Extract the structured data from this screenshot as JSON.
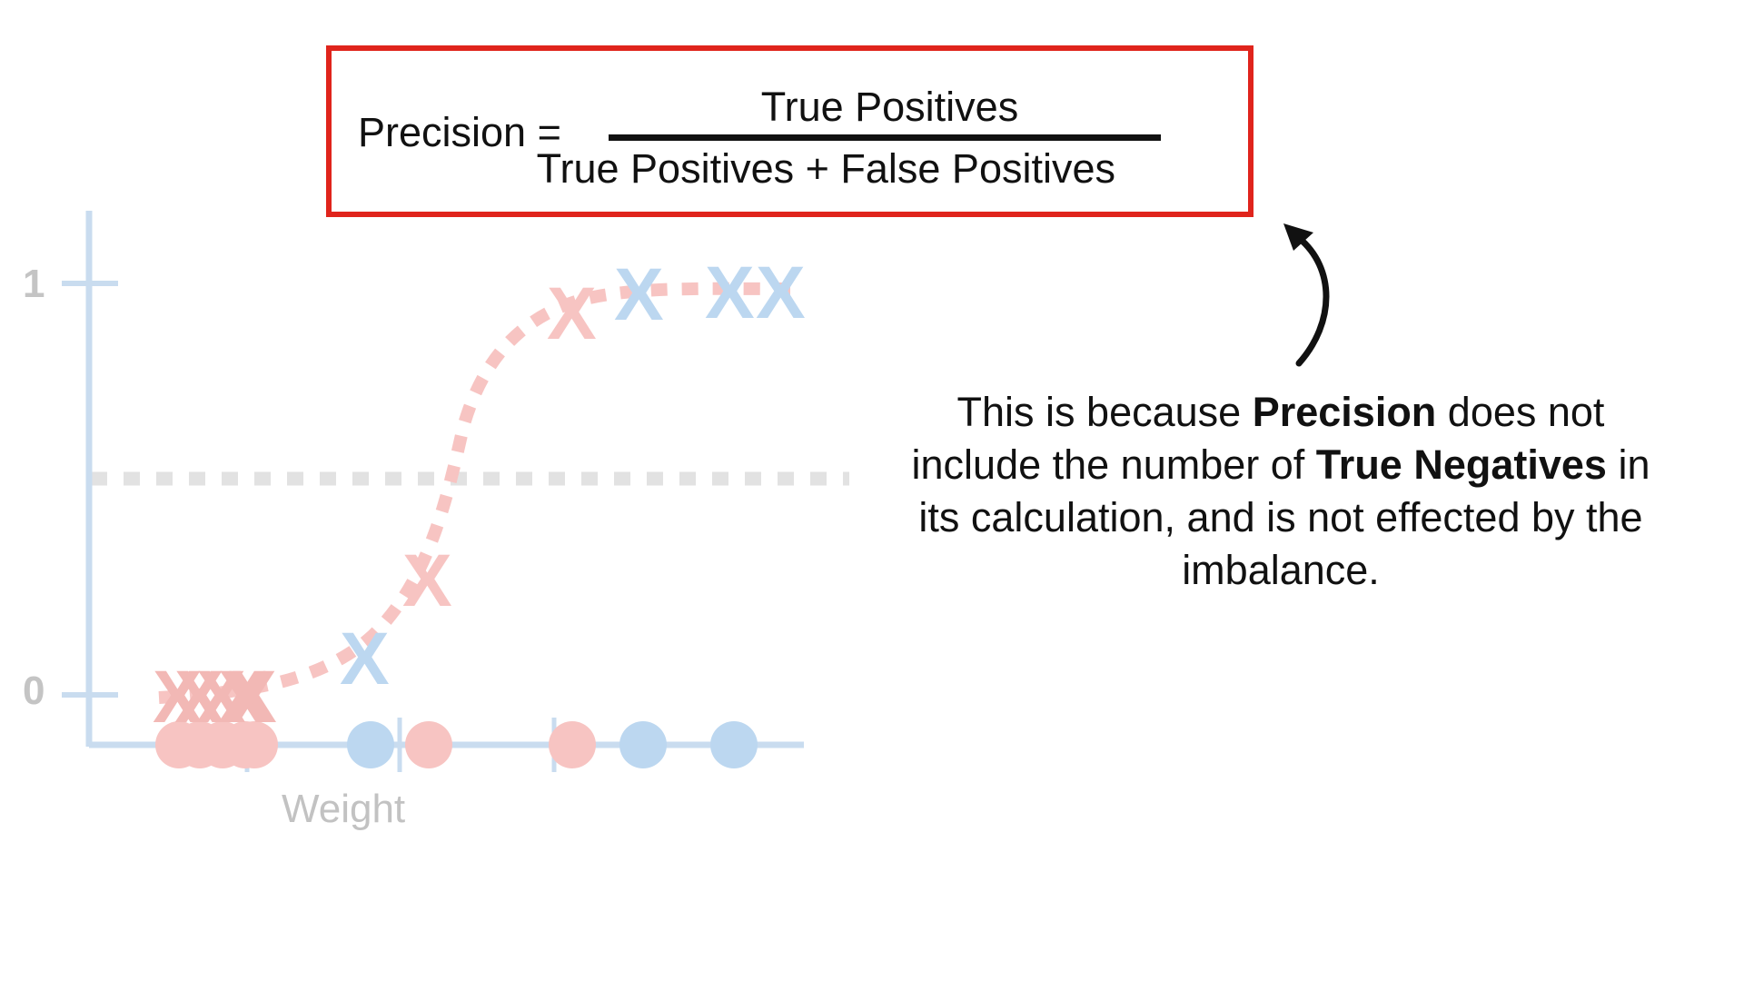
{
  "formula": {
    "lhs": "Precision =",
    "numerator": "True Positives",
    "denominator": "True Positives + False Positives"
  },
  "callout": {
    "t1": "This is because ",
    "b1": "Precision",
    "t2": " does not include the number of ",
    "b2": "True Negatives",
    "t3": " in its calculation, and is not effected by the imbalance."
  },
  "colors": {
    "box_border": "#e0241c",
    "positive_class": "#f7c4c2",
    "negative_class": "#bcd7f0",
    "axis": "#c9dcef",
    "threshold": "#e2e2e2",
    "curve": "#f7c4c2"
  },
  "chart_data": {
    "type": "scatter",
    "xlabel": "Weight",
    "ylabel": "",
    "ylim": [
      0,
      1
    ],
    "yticks": [
      "0",
      "1"
    ],
    "threshold": 0.5,
    "series": [
      {
        "class": "pink",
        "marker": "X",
        "points": [
          [
            0.4,
            0
          ],
          [
            0.5,
            0
          ],
          [
            0.6,
            0
          ],
          [
            0.7,
            0
          ],
          [
            0.8,
            0
          ],
          [
            3.7,
            0.27
          ],
          [
            5.2,
            1
          ]
        ]
      },
      {
        "class": "blue",
        "marker": "X",
        "points": [
          [
            3.0,
            0.08
          ],
          [
            5.8,
            1
          ],
          [
            6.6,
            1
          ],
          [
            7.0,
            1
          ]
        ]
      }
    ],
    "axis_points": [
      {
        "class": "pink",
        "x": [
          0.4,
          0.6,
          0.8,
          1.0,
          1.2,
          3.7,
          5.0
        ]
      },
      {
        "class": "blue",
        "x": [
          3.2,
          5.8,
          6.6
        ]
      }
    ]
  }
}
